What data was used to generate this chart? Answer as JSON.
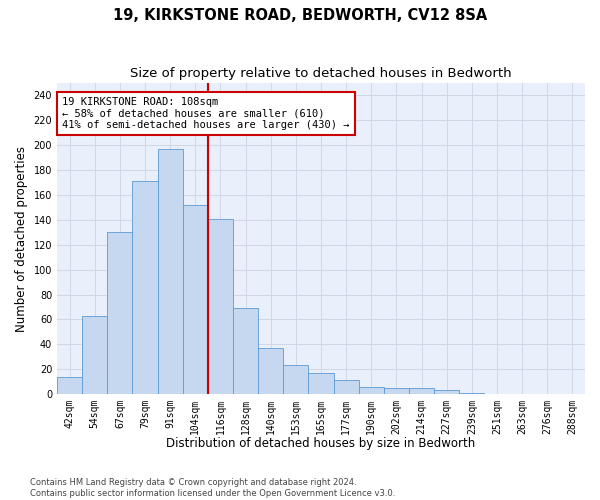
{
  "title": "19, KIRKSTONE ROAD, BEDWORTH, CV12 8SA",
  "subtitle": "Size of property relative to detached houses in Bedworth",
  "xlabel": "Distribution of detached houses by size in Bedworth",
  "ylabel": "Number of detached properties",
  "bar_labels": [
    "42sqm",
    "54sqm",
    "67sqm",
    "79sqm",
    "91sqm",
    "104sqm",
    "116sqm",
    "128sqm",
    "140sqm",
    "153sqm",
    "165sqm",
    "177sqm",
    "190sqm",
    "202sqm",
    "214sqm",
    "227sqm",
    "239sqm",
    "251sqm",
    "263sqm",
    "276sqm",
    "288sqm"
  ],
  "bar_values": [
    14,
    63,
    130,
    171,
    197,
    152,
    141,
    69,
    37,
    23,
    17,
    11,
    6,
    5,
    5,
    3,
    1,
    0,
    0,
    0,
    0
  ],
  "bar_color": "#c5d8f0",
  "bar_edgecolor": "#5b9bd5",
  "vline_color": "#cc0000",
  "annotation_line1": "19 KIRKSTONE ROAD: 108sqm",
  "annotation_line2": "← 58% of detached houses are smaller (610)",
  "annotation_line3": "41% of semi-detached houses are larger (430) →",
  "annotation_box_color": "#ffffff",
  "annotation_box_edgecolor": "#cc0000",
  "ylim": [
    0,
    250
  ],
  "yticks": [
    0,
    20,
    40,
    60,
    80,
    100,
    120,
    140,
    160,
    180,
    200,
    220,
    240
  ],
  "grid_color": "#d0d8e8",
  "background_color": "#eaf0fb",
  "footer_text": "Contains HM Land Registry data © Crown copyright and database right 2024.\nContains public sector information licensed under the Open Government Licence v3.0.",
  "title_fontsize": 10.5,
  "subtitle_fontsize": 9.5,
  "xlabel_fontsize": 8.5,
  "ylabel_fontsize": 8.5,
  "tick_fontsize": 7,
  "annotation_fontsize": 7.5,
  "footer_fontsize": 6
}
